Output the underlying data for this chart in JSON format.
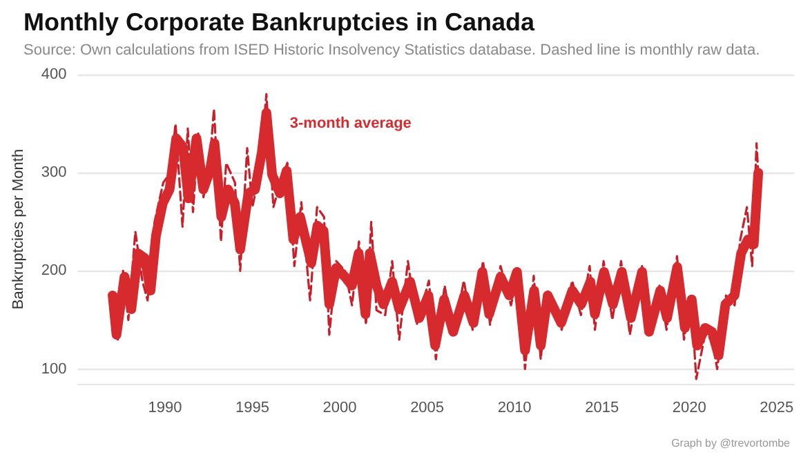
{
  "chart_data": {
    "type": "line",
    "title": "Monthly Corporate Bankruptcies in Canada",
    "subtitle": "Source: Own calculations from ISED Historic Insolvency Statistics database. Dashed line is monthly raw data.",
    "ylabel": "Bankruptcies per Month",
    "xlim": [
      1985,
      2026
    ],
    "xticks": [
      1990,
      1995,
      2000,
      2005,
      2010,
      2015,
      2020,
      2025
    ],
    "ylim": [
      85,
      400
    ],
    "yticks": [
      100,
      200,
      300,
      400
    ],
    "grid": "y",
    "legend": false,
    "marker": "none",
    "annotations": [
      "Graph by @trevortombe"
    ],
    "series": [
      {
        "color": "#c8202a",
        "line_style": "dashed",
        "x": [
          1987.0,
          1987.3,
          1987.6,
          1987.9,
          1988.3,
          1988.7,
          1989.0,
          1989.4,
          1989.9,
          1990.3,
          1990.6,
          1991.0,
          1991.3,
          1991.6,
          1991.9,
          1992.2,
          1992.6,
          1992.8,
          1993.2,
          1993.5,
          1994.0,
          1994.3,
          1994.7,
          1995.0,
          1995.4,
          1995.8,
          1996.2,
          1996.6,
          1997.0,
          1997.4,
          1997.8,
          1998.3,
          1998.7,
          1999.1,
          1999.4,
          1999.8,
          2000.3,
          2000.7,
          2001.1,
          2001.5,
          2001.8,
          2002.1,
          2002.6,
          2003.0,
          2003.4,
          2003.9,
          2004.4,
          2005.1,
          2005.5,
          2006.0,
          2006.5,
          2007.1,
          2007.6,
          2008.2,
          2008.6,
          2009.2,
          2009.8,
          2010.2,
          2010.6,
          2011.1,
          2011.5,
          2011.9,
          2012.7,
          2013.3,
          2013.8,
          2014.3,
          2014.6,
          2015.1,
          2015.6,
          2016.1,
          2016.6,
          2017.3,
          2017.7,
          2018.3,
          2018.7,
          2019.3,
          2019.7,
          2020.1,
          2020.4,
          2020.9,
          2021.3,
          2021.6,
          2022.1,
          2022.6,
          2022.9,
          2023.3,
          2023.6,
          2023.85,
          2023.95
        ],
        "values": [
          175,
          130,
          200,
          150,
          240,
          190,
          170,
          250,
          290,
          300,
          350,
          245,
          345,
          260,
          340,
          275,
          320,
          365,
          230,
          310,
          290,
          200,
          325,
          265,
          300,
          380,
          265,
          290,
          310,
          205,
          270,
          170,
          265,
          255,
          135,
          210,
          200,
          165,
          230,
          145,
          250,
          160,
          155,
          210,
          130,
          210,
          145,
          190,
          110,
          185,
          135,
          190,
          140,
          210,
          145,
          205,
          165,
          200,
          100,
          195,
          110,
          180,
          140,
          190,
          155,
          205,
          140,
          210,
          150,
          210,
          135,
          205,
          135,
          185,
          140,
          215,
          130,
          175,
          90,
          135,
          130,
          100,
          175,
          165,
          230,
          265,
          205,
          330,
          300
        ]
      },
      {
        "name": "3-month average",
        "color": "#d62a2e",
        "x": [
          1987.0,
          1987.22,
          1987.68,
          1988.07,
          1988.45,
          1988.84,
          1989.17,
          1989.48,
          1989.87,
          1990.26,
          1990.64,
          1991.03,
          1991.34,
          1991.8,
          1992.19,
          1992.57,
          1992.83,
          1993.22,
          1993.6,
          1993.99,
          1994.3,
          1994.77,
          1995.15,
          1995.54,
          1995.8,
          1996.13,
          1996.57,
          1996.96,
          1997.34,
          1997.73,
          1998.37,
          1998.72,
          1999.07,
          1999.4,
          1999.79,
          2000.3,
          2000.69,
          2001.08,
          2001.47,
          2001.72,
          2002.11,
          2002.5,
          2003.0,
          2003.4,
          2004.03,
          2004.55,
          2005.07,
          2005.46,
          2005.97,
          2006.49,
          2007.13,
          2007.65,
          2008.16,
          2008.55,
          2009.2,
          2009.7,
          2010.14,
          2010.6,
          2011.12,
          2011.5,
          2011.9,
          2012.67,
          2013.31,
          2013.82,
          2014.34,
          2014.6,
          2015.12,
          2015.63,
          2016.14,
          2016.66,
          2017.3,
          2017.7,
          2018.34,
          2018.73,
          2019.31,
          2019.75,
          2020.14,
          2020.45,
          2020.91,
          2021.3,
          2021.68,
          2022.07,
          2022.59,
          2022.97,
          2023.36,
          2023.69,
          2023.95
        ],
        "values": [
          175,
          135,
          194,
          161,
          218,
          213,
          180,
          236,
          269,
          283,
          335,
          326,
          274,
          335,
          283,
          302,
          330,
          255,
          283,
          269,
          222,
          279,
          283,
          321,
          361,
          298,
          279,
          302,
          232,
          255,
          208,
          246,
          241,
          166,
          203,
          194,
          185,
          218,
          156,
          218,
          185,
          166,
          189,
          161,
          189,
          152,
          175,
          124,
          171,
          138,
          175,
          147,
          199,
          156,
          194,
          175,
          199,
          119,
          180,
          124,
          175,
          147,
          180,
          166,
          189,
          156,
          199,
          166,
          199,
          152,
          199,
          138,
          180,
          152,
          204,
          142,
          171,
          124,
          142,
          138,
          114,
          166,
          175,
          218,
          232,
          227,
          300
        ]
      }
    ]
  }
}
